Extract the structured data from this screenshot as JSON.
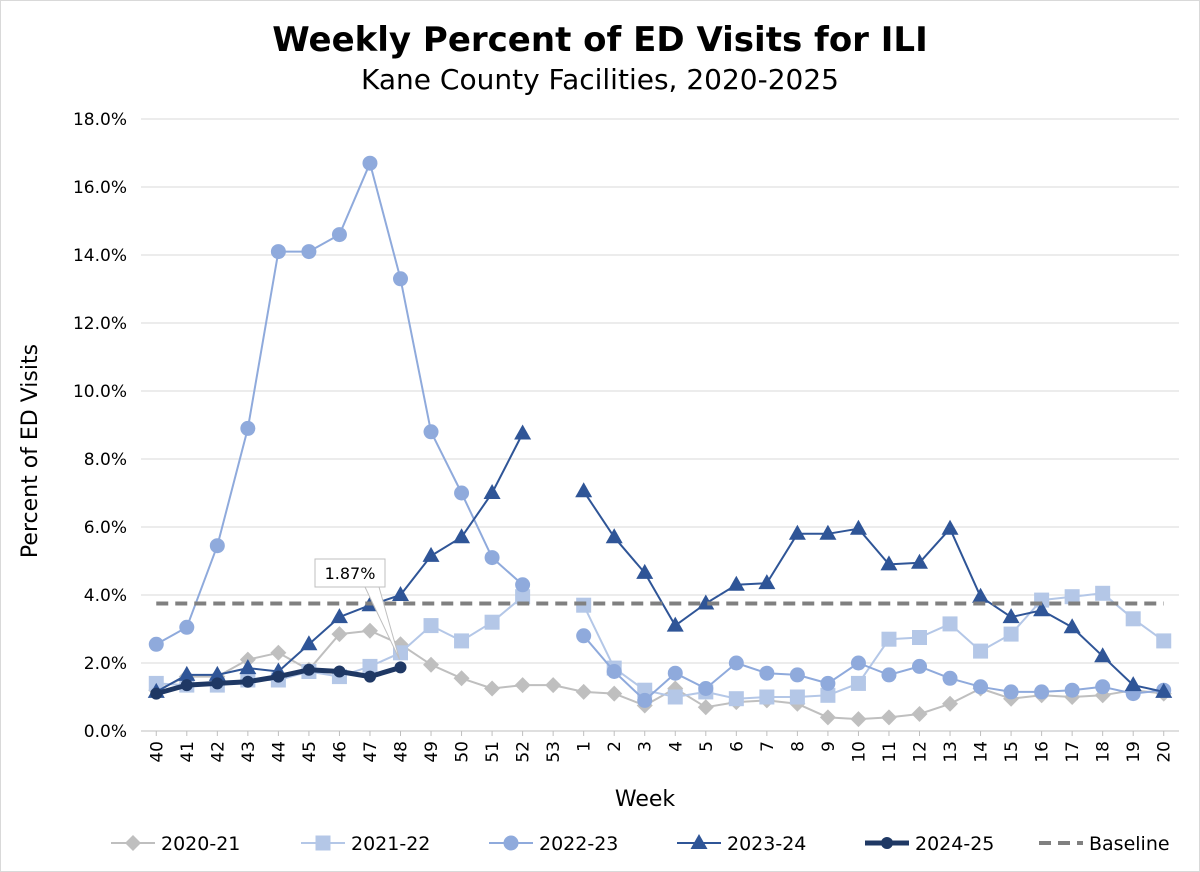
{
  "chart_data": {
    "type": "line",
    "title": "Weekly Percent of ED Visits for ILI",
    "subtitle": "Kane County Facilities, 2020-2025",
    "xlabel": "Week",
    "ylabel": "Percent of ED Visits",
    "ylim": [
      0,
      18
    ],
    "y_ticks": [
      "0.0%",
      "2.0%",
      "4.0%",
      "6.0%",
      "8.0%",
      "10.0%",
      "12.0%",
      "14.0%",
      "16.0%",
      "18.0%"
    ],
    "y_tick_values": [
      0,
      2,
      4,
      6,
      8,
      10,
      12,
      14,
      16,
      18
    ],
    "categories": [
      "40",
      "41",
      "42",
      "43",
      "44",
      "45",
      "46",
      "47",
      "48",
      "49",
      "50",
      "51",
      "52",
      "53",
      "1",
      "2",
      "3",
      "4",
      "5",
      "6",
      "7",
      "8",
      "9",
      "10",
      "11",
      "12",
      "13",
      "14",
      "15",
      "16",
      "17",
      "18",
      "19",
      "20"
    ],
    "grid": true,
    "legend_position": "bottom",
    "series": [
      {
        "name": "2020-21",
        "marker": "diamond",
        "color": "#bfbfbf",
        "width": 2,
        "values": [
          1.2,
          1.6,
          1.6,
          2.1,
          2.3,
          1.8,
          2.85,
          2.95,
          2.55,
          1.95,
          1.55,
          1.25,
          1.35,
          1.35,
          1.15,
          1.1,
          0.75,
          1.25,
          0.7,
          0.85,
          0.9,
          0.8,
          0.4,
          0.35,
          0.4,
          0.5,
          0.8,
          1.25,
          0.95,
          1.05,
          1.0,
          1.05,
          1.2,
          1.1
        ]
      },
      {
        "name": "2021-22",
        "marker": "square",
        "color": "#b4c7e7",
        "width": 2,
        "values": [
          1.4,
          1.35,
          1.35,
          1.5,
          1.5,
          1.75,
          1.6,
          1.9,
          2.3,
          3.1,
          2.65,
          3.2,
          3.95,
          null,
          3.7,
          1.85,
          1.2,
          1.0,
          1.15,
          0.95,
          1.0,
          1.0,
          1.05,
          1.4,
          2.7,
          2.75,
          3.15,
          2.35,
          2.85,
          3.85,
          3.95,
          4.05,
          3.3,
          2.65
        ]
      },
      {
        "name": "2022-23",
        "marker": "circle",
        "color": "#8faadc",
        "width": 2,
        "values": [
          2.55,
          3.05,
          5.45,
          8.9,
          14.1,
          14.1,
          14.6,
          16.7,
          13.3,
          8.8,
          7.0,
          5.1,
          4.3,
          null,
          2.8,
          1.75,
          0.9,
          1.7,
          1.25,
          2.0,
          1.7,
          1.65,
          1.4,
          2.0,
          1.65,
          1.9,
          1.55,
          1.3,
          1.15,
          1.15,
          1.2,
          1.3,
          1.1,
          1.2
        ]
      },
      {
        "name": "2023-24",
        "marker": "triangle",
        "color": "#2f5597",
        "width": 2,
        "values": [
          1.15,
          1.65,
          1.65,
          1.85,
          1.75,
          2.55,
          3.35,
          3.7,
          4.0,
          5.15,
          5.7,
          7.0,
          8.75,
          null,
          7.05,
          5.7,
          4.65,
          3.1,
          3.75,
          4.3,
          4.35,
          5.8,
          5.8,
          5.95,
          4.9,
          4.95,
          5.95,
          3.95,
          3.35,
          3.55,
          3.05,
          2.2,
          1.35,
          1.15
        ]
      },
      {
        "name": "2024-25",
        "marker": "circle-small",
        "color": "#1f3864",
        "width": 5,
        "values": [
          1.1,
          1.35,
          1.4,
          1.45,
          1.6,
          1.8,
          1.75,
          1.6,
          1.87,
          null,
          null,
          null,
          null,
          null,
          null,
          null,
          null,
          null,
          null,
          null,
          null,
          null,
          null,
          null,
          null,
          null,
          null,
          null,
          null,
          null,
          null,
          null,
          null,
          null
        ]
      },
      {
        "name": "Baseline",
        "marker": "none",
        "color": "#808080",
        "width": 4,
        "dash": true,
        "values": [
          3.75,
          3.75,
          3.75,
          3.75,
          3.75,
          3.75,
          3.75,
          3.75,
          3.75,
          3.75,
          3.75,
          3.75,
          3.75,
          3.75,
          3.75,
          3.75,
          3.75,
          3.75,
          3.75,
          3.75,
          3.75,
          3.75,
          3.75,
          3.75,
          3.75,
          3.75,
          3.75,
          3.75,
          3.75,
          3.75,
          3.75,
          3.75,
          3.75,
          3.75
        ]
      }
    ],
    "annotation": {
      "text": "1.87%",
      "series": "2024-25",
      "category": "48"
    }
  }
}
